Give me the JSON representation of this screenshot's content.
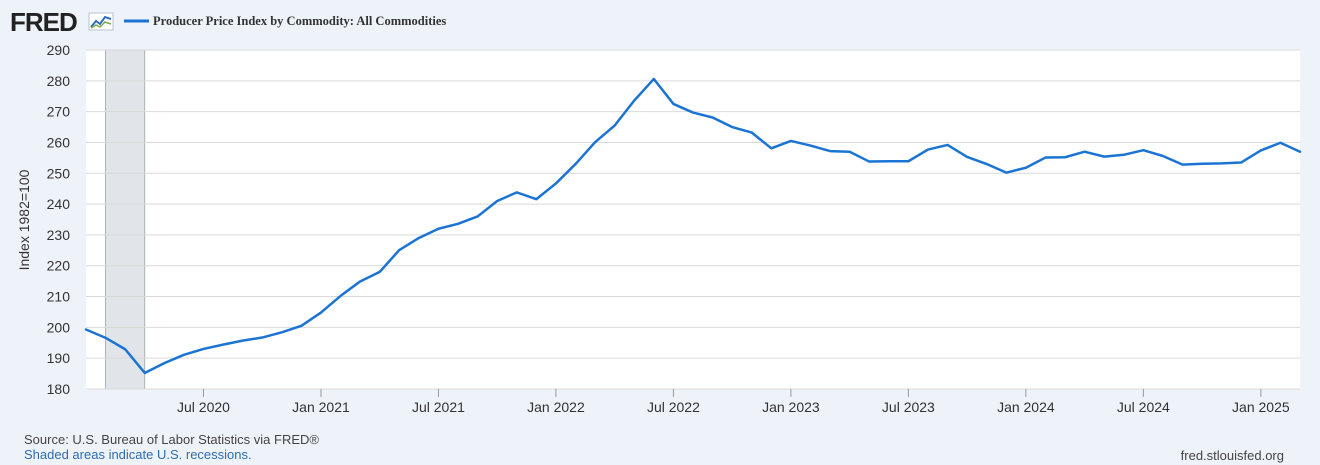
{
  "logo": {
    "text": "FRED",
    "icon": "trend-chart-icon"
  },
  "colors": {
    "background": "#eef3fa",
    "plot_background": "#ffffff",
    "series_line": "#1b74d4",
    "grid": "#d9d9d9",
    "recession_shade": "#e1e5e9",
    "logo": "#222222"
  },
  "footer": {
    "source": "Source: U.S. Bureau of Labor Statistics via FRED®",
    "note": "Shaded areas indicate U.S. recessions.",
    "site": "fred.stlouisfed.org"
  },
  "chart_data": {
    "type": "line",
    "title": "",
    "xlabel": "",
    "ylabel": "Index 1982=100",
    "ylim": [
      180,
      290
    ],
    "yticks": [
      180,
      190,
      200,
      210,
      220,
      230,
      240,
      250,
      260,
      270,
      280,
      290
    ],
    "grid": true,
    "legend": "top-left",
    "x_range": [
      "2020-01",
      "2025-03"
    ],
    "xticks": [
      {
        "date": "2020-07",
        "label": "Jul 2020"
      },
      {
        "date": "2021-01",
        "label": "Jan 2021"
      },
      {
        "date": "2021-07",
        "label": "Jul 2021"
      },
      {
        "date": "2022-01",
        "label": "Jan 2022"
      },
      {
        "date": "2022-07",
        "label": "Jul 2022"
      },
      {
        "date": "2023-01",
        "label": "Jan 2023"
      },
      {
        "date": "2023-07",
        "label": "Jul 2023"
      },
      {
        "date": "2024-01",
        "label": "Jan 2024"
      },
      {
        "date": "2024-07",
        "label": "Jul 2024"
      },
      {
        "date": "2025-01",
        "label": "Jan 2025"
      }
    ],
    "recessions": [
      {
        "start": "2020-02",
        "end": "2020-04"
      }
    ],
    "series": [
      {
        "name": "Producer Price Index by Commodity: All Commodities",
        "color": "#1b74d4",
        "x": [
          "2020-01",
          "2020-02",
          "2020-03",
          "2020-04",
          "2020-05",
          "2020-06",
          "2020-07",
          "2020-08",
          "2020-09",
          "2020-10",
          "2020-11",
          "2020-12",
          "2021-01",
          "2021-02",
          "2021-03",
          "2021-04",
          "2021-05",
          "2021-06",
          "2021-07",
          "2021-08",
          "2021-09",
          "2021-10",
          "2021-11",
          "2021-12",
          "2022-01",
          "2022-02",
          "2022-03",
          "2022-04",
          "2022-05",
          "2022-06",
          "2022-07",
          "2022-08",
          "2022-09",
          "2022-10",
          "2022-11",
          "2022-12",
          "2023-01",
          "2023-02",
          "2023-03",
          "2023-04",
          "2023-05",
          "2023-06",
          "2023-07",
          "2023-08",
          "2023-09",
          "2023-10",
          "2023-11",
          "2023-12",
          "2024-01",
          "2024-02",
          "2024-03",
          "2024-04",
          "2024-05",
          "2024-06",
          "2024-07",
          "2024-08",
          "2024-09",
          "2024-10",
          "2024-11",
          "2024-12",
          "2025-01",
          "2025-02",
          "2025-03"
        ],
        "values": [
          199.3,
          196.6,
          192.9,
          185.2,
          188.4,
          191.1,
          193.0,
          194.4,
          195.7,
          196.7,
          198.4,
          200.5,
          204.8,
          210.2,
          214.9,
          218.0,
          225.1,
          229.0,
          232.0,
          233.6,
          236.0,
          241.0,
          243.8,
          241.6,
          246.7,
          253.0,
          260.1,
          265.5,
          273.6,
          280.6,
          272.5,
          269.7,
          268.1,
          265.0,
          263.2,
          258.1,
          260.5,
          259.0,
          257.2,
          257.0,
          253.8,
          253.9,
          253.9,
          257.7,
          259.2,
          255.3,
          253.0,
          250.2,
          251.8,
          255.1,
          255.2,
          257.0,
          255.4,
          256.0,
          257.5,
          255.6,
          252.8,
          253.1,
          253.2,
          253.5,
          257.4,
          259.9,
          257.0
        ]
      }
    ]
  }
}
